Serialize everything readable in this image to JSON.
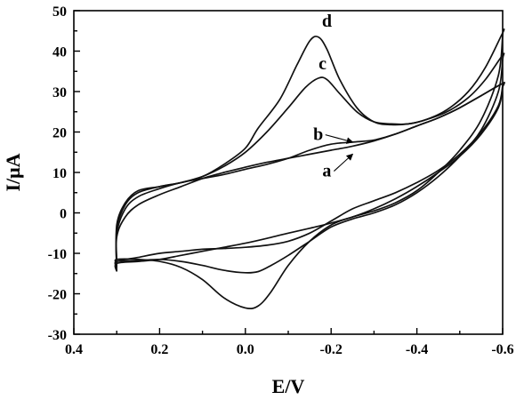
{
  "chart_data": {
    "type": "line",
    "xlabel": "E/V",
    "ylabel": "I/μA",
    "xlim": [
      0.4,
      -0.6
    ],
    "ylim": [
      -30,
      50
    ],
    "x_ticks": [
      {
        "value": 0.4,
        "label": "0.4"
      },
      {
        "value": 0.2,
        "label": "0.2"
      },
      {
        "value": 0.0,
        "label": "0.0"
      },
      {
        "value": -0.2,
        "label": "-0.2"
      },
      {
        "value": -0.4,
        "label": "-0.4"
      },
      {
        "value": -0.6,
        "label": "-0.6"
      }
    ],
    "y_ticks": [
      {
        "value": 50,
        "label": "50"
      },
      {
        "value": 40,
        "label": "40"
      },
      {
        "value": 30,
        "label": "30"
      },
      {
        "value": 20,
        "label": "20"
      },
      {
        "value": 10,
        "label": "10"
      },
      {
        "value": 0,
        "label": "0"
      },
      {
        "value": -10,
        "label": "-10"
      },
      {
        "value": -20,
        "label": "-20"
      },
      {
        "value": -30,
        "label": "-30"
      }
    ],
    "grid": false,
    "series": [
      {
        "name": "a",
        "points": [
          [
            0.3,
            -14.5
          ],
          [
            0.3,
            -12.5
          ],
          [
            0.25,
            -12
          ],
          [
            0.2,
            -11.5
          ],
          [
            0.15,
            -10.5
          ],
          [
            0.1,
            -9.5
          ],
          [
            0.05,
            -8.5
          ],
          [
            0.0,
            -7.5
          ],
          [
            -0.05,
            -6.3
          ],
          [
            -0.1,
            -5
          ],
          [
            -0.15,
            -3.8
          ],
          [
            -0.2,
            -2.5
          ],
          [
            -0.25,
            -1
          ],
          [
            -0.3,
            1
          ],
          [
            -0.35,
            3.5
          ],
          [
            -0.4,
            6.5
          ],
          [
            -0.45,
            10
          ],
          [
            -0.5,
            14
          ],
          [
            -0.55,
            19.5
          ],
          [
            -0.59,
            26
          ],
          [
            -0.6,
            31
          ],
          [
            -0.6,
            32
          ],
          [
            -0.55,
            29
          ],
          [
            -0.5,
            26
          ],
          [
            -0.45,
            23.5
          ],
          [
            -0.4,
            21.5
          ],
          [
            -0.35,
            19.5
          ],
          [
            -0.3,
            17.8
          ],
          [
            -0.25,
            16.5
          ],
          [
            -0.2,
            15.5
          ],
          [
            -0.15,
            14.5
          ],
          [
            -0.1,
            13.5
          ],
          [
            -0.05,
            12.5
          ],
          [
            0.0,
            11.3
          ],
          [
            0.05,
            10
          ],
          [
            0.1,
            8.5
          ],
          [
            0.15,
            6.5
          ],
          [
            0.2,
            4.5
          ],
          [
            0.25,
            2
          ],
          [
            0.28,
            -1
          ],
          [
            0.3,
            -6
          ],
          [
            0.3,
            -14.5
          ]
        ]
      },
      {
        "name": "b",
        "points": [
          [
            0.3,
            -13.5
          ],
          [
            0.3,
            -12
          ],
          [
            0.25,
            -11
          ],
          [
            0.2,
            -10
          ],
          [
            0.15,
            -9.5
          ],
          [
            0.1,
            -9
          ],
          [
            0.05,
            -8.8
          ],
          [
            0.0,
            -8.5
          ],
          [
            -0.05,
            -8
          ],
          [
            -0.1,
            -7
          ],
          [
            -0.15,
            -5
          ],
          [
            -0.2,
            -2
          ],
          [
            -0.25,
            1
          ],
          [
            -0.3,
            3
          ],
          [
            -0.35,
            5
          ],
          [
            -0.4,
            7.5
          ],
          [
            -0.45,
            10.5
          ],
          [
            -0.5,
            14.5
          ],
          [
            -0.55,
            20
          ],
          [
            -0.59,
            26.5
          ],
          [
            -0.6,
            31.5
          ],
          [
            -0.6,
            32
          ],
          [
            -0.55,
            29
          ],
          [
            -0.5,
            26
          ],
          [
            -0.45,
            23.5
          ],
          [
            -0.4,
            21.5
          ],
          [
            -0.35,
            19.5
          ],
          [
            -0.3,
            18
          ],
          [
            -0.25,
            17.5
          ],
          [
            -0.2,
            17
          ],
          [
            -0.15,
            15.5
          ],
          [
            -0.1,
            13.5
          ],
          [
            -0.05,
            12
          ],
          [
            0.0,
            10.8
          ],
          [
            0.05,
            9.5
          ],
          [
            0.1,
            8.5
          ],
          [
            0.15,
            7.5
          ],
          [
            0.2,
            6
          ],
          [
            0.25,
            4
          ],
          [
            0.28,
            1
          ],
          [
            0.3,
            -5
          ],
          [
            0.3,
            -13.5
          ]
        ]
      },
      {
        "name": "c",
        "points": [
          [
            0.3,
            -13
          ],
          [
            0.3,
            -12
          ],
          [
            0.25,
            -11.8
          ],
          [
            0.2,
            -11.5
          ],
          [
            0.15,
            -12
          ],
          [
            0.1,
            -13
          ],
          [
            0.05,
            -14.2
          ],
          [
            0.0,
            -14.8
          ],
          [
            -0.03,
            -14.5
          ],
          [
            -0.06,
            -13
          ],
          [
            -0.1,
            -10.5
          ],
          [
            -0.15,
            -7
          ],
          [
            -0.2,
            -3.5
          ],
          [
            -0.25,
            -1.5
          ],
          [
            -0.3,
            0
          ],
          [
            -0.35,
            2
          ],
          [
            -0.4,
            5
          ],
          [
            -0.45,
            9
          ],
          [
            -0.5,
            14
          ],
          [
            -0.55,
            20.5
          ],
          [
            -0.59,
            30
          ],
          [
            -0.6,
            38
          ],
          [
            -0.6,
            39
          ],
          [
            -0.56,
            33
          ],
          [
            -0.52,
            28.5
          ],
          [
            -0.47,
            25
          ],
          [
            -0.42,
            23
          ],
          [
            -0.38,
            22
          ],
          [
            -0.34,
            22
          ],
          [
            -0.3,
            22.5
          ],
          [
            -0.26,
            25
          ],
          [
            -0.22,
            29.5
          ],
          [
            -0.19,
            33
          ],
          [
            -0.17,
            33.3
          ],
          [
            -0.14,
            31
          ],
          [
            -0.1,
            26
          ],
          [
            -0.05,
            20
          ],
          [
            0.0,
            15
          ],
          [
            0.05,
            11.5
          ],
          [
            0.1,
            9
          ],
          [
            0.15,
            7.5
          ],
          [
            0.2,
            6.5
          ],
          [
            0.25,
            5
          ],
          [
            0.28,
            2
          ],
          [
            0.3,
            -4
          ],
          [
            0.3,
            -13
          ]
        ]
      },
      {
        "name": "d",
        "points": [
          [
            0.3,
            -12.5
          ],
          [
            0.3,
            -11.5
          ],
          [
            0.25,
            -11.5
          ],
          [
            0.2,
            -12
          ],
          [
            0.15,
            -13.5
          ],
          [
            0.1,
            -16.5
          ],
          [
            0.05,
            -21
          ],
          [
            0.0,
            -23.5
          ],
          [
            -0.03,
            -23
          ],
          [
            -0.06,
            -19.5
          ],
          [
            -0.1,
            -13
          ],
          [
            -0.15,
            -7
          ],
          [
            -0.2,
            -3
          ],
          [
            -0.25,
            -1
          ],
          [
            -0.3,
            0.5
          ],
          [
            -0.35,
            2.5
          ],
          [
            -0.4,
            5.5
          ],
          [
            -0.45,
            10
          ],
          [
            -0.5,
            15.5
          ],
          [
            -0.55,
            23
          ],
          [
            -0.59,
            34
          ],
          [
            -0.6,
            44
          ],
          [
            -0.6,
            44.5
          ],
          [
            -0.56,
            36
          ],
          [
            -0.52,
            30
          ],
          [
            -0.47,
            25.5
          ],
          [
            -0.42,
            23
          ],
          [
            -0.38,
            22
          ],
          [
            -0.34,
            21.8
          ],
          [
            -0.3,
            22.5
          ],
          [
            -0.26,
            26
          ],
          [
            -0.22,
            33
          ],
          [
            -0.19,
            40.5
          ],
          [
            -0.17,
            43.5
          ],
          [
            -0.15,
            42.5
          ],
          [
            -0.12,
            36.5
          ],
          [
            -0.08,
            28
          ],
          [
            -0.03,
            21
          ],
          [
            0.0,
            16
          ],
          [
            0.05,
            12
          ],
          [
            0.1,
            9
          ],
          [
            0.15,
            7.5
          ],
          [
            0.2,
            6.5
          ],
          [
            0.25,
            5.5
          ],
          [
            0.28,
            2.5
          ],
          [
            0.3,
            -3
          ],
          [
            0.3,
            -12.5
          ]
        ]
      }
    ],
    "annotations": [
      {
        "text": "d",
        "x": -0.19,
        "y": 46
      },
      {
        "text": "c",
        "x": -0.18,
        "y": 35.5
      },
      {
        "text": "b",
        "x": -0.17,
        "y": 18,
        "arrow_to": [
          -0.25,
          17.5
        ]
      },
      {
        "text": "a",
        "x": -0.19,
        "y": 9,
        "arrow_to": [
          -0.25,
          14.5
        ]
      }
    ]
  }
}
